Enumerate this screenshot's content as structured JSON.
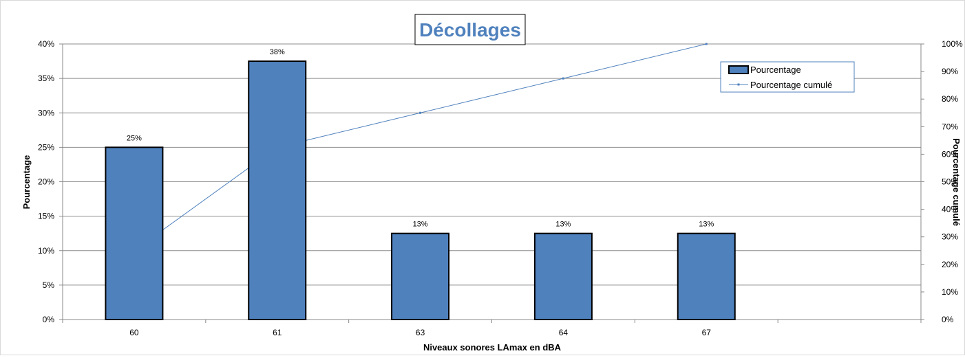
{
  "chart_data": {
    "type": "bar",
    "title": "Décollages",
    "xlabel": "Niveaux sonores LAmax en dBA",
    "ylabel": "Pourcentage",
    "ylabel_right": "Pourcentage cumulé",
    "categories": [
      "60",
      "61",
      "63",
      "64",
      "67"
    ],
    "y_ticks": [
      "0%",
      "5%",
      "10%",
      "15%",
      "20%",
      "25%",
      "30%",
      "35%",
      "40%"
    ],
    "y2_ticks": [
      "0%",
      "10%",
      "20%",
      "30%",
      "40%",
      "50%",
      "60%",
      "70%",
      "80%",
      "90%",
      "100%"
    ],
    "ylim": [
      0,
      40
    ],
    "y2lim": [
      0,
      100
    ],
    "grid": true,
    "legend_position": "top-right",
    "series": [
      {
        "name": "Pourcentage",
        "kind": "bar",
        "axis": "left",
        "values": [
          25,
          37.5,
          12.5,
          12.5,
          12.5
        ],
        "labels": [
          "25%",
          "38%",
          "13%",
          "13%",
          "13%"
        ],
        "color": "#4f81bd"
      },
      {
        "name": "Pourcentage cumulé",
        "kind": "line",
        "axis": "right",
        "values": [
          25,
          62.5,
          75,
          87.5,
          100
        ],
        "color": "#4f81bd"
      }
    ]
  }
}
